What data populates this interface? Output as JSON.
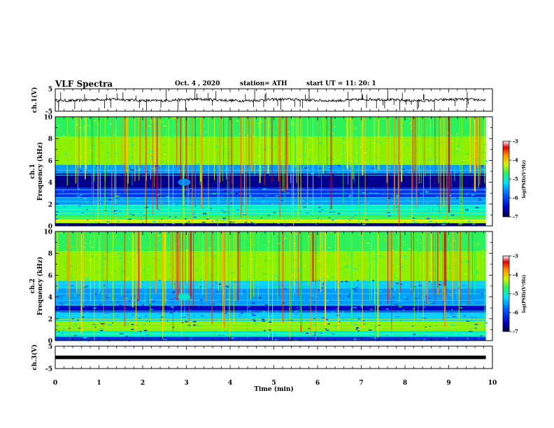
{
  "header": {
    "title": "VLF Spectra",
    "date": "Oct. 4 , 2020",
    "station": "station= ATH",
    "start_time": "start UT = 11: 20: 1"
  },
  "chart_data": [
    {
      "type": "line",
      "ylabel": "ch.1(V)",
      "yticks": [
        "5",
        "-5"
      ],
      "ylim": [
        -5,
        5
      ],
      "description_values": "trace near 0 V with spikes",
      "xlim": [
        0,
        10
      ]
    },
    {
      "type": "heatmap",
      "ylabel": "ch.1 Frequency (kHz)",
      "yticks": [
        "0",
        "2",
        "4",
        "6",
        "8",
        "10"
      ],
      "ylim": [
        0,
        10
      ],
      "xlim": [
        0,
        10
      ],
      "colorbar": {
        "label": "log(PSD)(V²/Hz)",
        "ticks": [
          "-3",
          "-4",
          "-5",
          "-6",
          "-7"
        ],
        "range": [
          -7,
          -3
        ]
      }
    },
    {
      "type": "heatmap",
      "ylabel": "ch.2 Frequency (kHz)",
      "yticks": [
        "0",
        "2",
        "4",
        "6",
        "8",
        "10"
      ],
      "ylim": [
        0,
        10
      ],
      "xlim": [
        0,
        10
      ],
      "colorbar": {
        "label": "log(PSD)(V²/Hz)",
        "ticks": [
          "-3",
          "-4",
          "-5",
          "-6",
          "-7"
        ],
        "range": [
          -7,
          -3
        ]
      }
    },
    {
      "type": "line",
      "ylabel": "ch.3(V)",
      "yticks": [
        "5",
        "-5"
      ],
      "ylim": [
        -5,
        5
      ],
      "level": 0,
      "xlim": [
        0,
        10
      ]
    }
  ],
  "xaxis": {
    "label": "Time (min)",
    "ticks": [
      "0",
      "1",
      "2",
      "3",
      "4",
      "5",
      "6",
      "7",
      "8",
      "9",
      "10"
    ]
  }
}
